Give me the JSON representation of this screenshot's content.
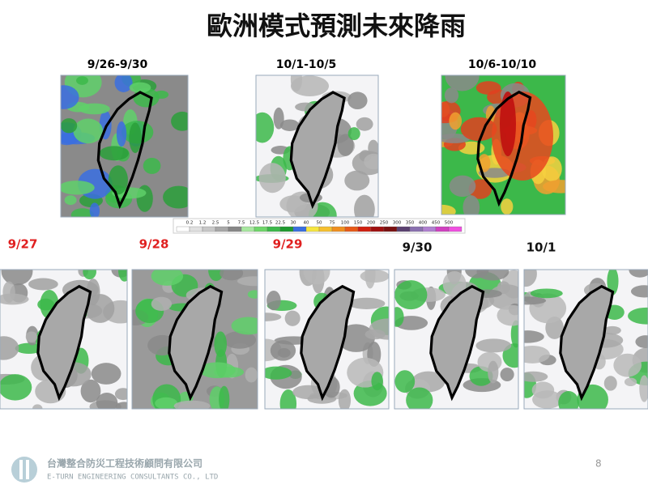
{
  "title": "歐洲模式預測未來降雨",
  "periods": [
    "9/26-9/30",
    "10/1-10/5",
    "10/6-10/10"
  ],
  "colorbar": [
    "0.2",
    "1.2",
    "2.5",
    "5",
    "7.5",
    "12.5",
    "17.5",
    "22.5",
    "30",
    "40",
    "50",
    "75",
    "100",
    "150",
    "200",
    "250",
    "300",
    "350",
    "400",
    "450",
    "500"
  ],
  "days": [
    "9/27",
    "9/28",
    "9/29",
    "9/30",
    "10/1"
  ],
  "footer": {
    "company": "台灣整合防災工程技術顧問有限公司",
    "company_en": "E-TURN ENGINEERING CONSULTANTS CO., LTD",
    "page": "8"
  }
}
